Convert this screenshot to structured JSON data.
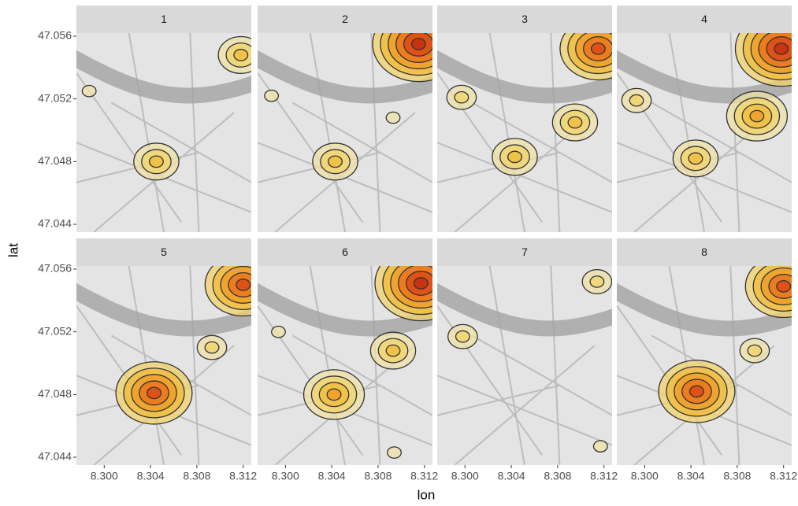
{
  "chart_data": {
    "type": "contour",
    "xlabel": "lon",
    "ylabel": "lat",
    "xlim": [
      8.2976,
      8.3127
    ],
    "ylim": [
      47.0435,
      47.0562
    ],
    "xticks": [
      {
        "value": 8.3,
        "label": "8.300"
      },
      {
        "value": 8.304,
        "label": "8.304"
      },
      {
        "value": 8.308,
        "label": "8.308"
      },
      {
        "value": 8.312,
        "label": "8.312"
      }
    ],
    "yticks": [
      47.044,
      47.048,
      47.052,
      47.056
    ],
    "facets": [
      {
        "label": "1",
        "x": [
          8.3045,
          8.3118,
          8.2987
        ],
        "y": [
          47.048,
          47.0548,
          47.0525
        ],
        "levels": [
          3,
          3,
          1
        ]
      },
      {
        "label": "2",
        "x": [
          8.3043,
          8.3115,
          8.2988,
          8.3093
        ],
        "y": [
          47.048,
          47.0555,
          47.0522,
          47.0508
        ],
        "levels": [
          3,
          6,
          1,
          1
        ]
      },
      {
        "label": "3",
        "x": [
          8.3043,
          8.3115,
          8.2997,
          8.3095
        ],
        "y": [
          47.0483,
          47.0552,
          47.0521,
          47.0505
        ],
        "levels": [
          3,
          5,
          2,
          3
        ]
      },
      {
        "label": "4",
        "x": [
          8.3044,
          8.3097,
          8.3118,
          8.2993
        ],
        "y": [
          47.0482,
          47.0509,
          47.0552,
          47.0519
        ],
        "levels": [
          3,
          4,
          6,
          2
        ]
      },
      {
        "label": "5",
        "x": [
          8.3043,
          8.312,
          8.3093
        ],
        "y": [
          47.0481,
          47.055,
          47.051
        ],
        "levels": [
          5,
          5,
          2
        ]
      },
      {
        "label": "6",
        "x": [
          8.3042,
          8.3093,
          8.3117,
          8.2994,
          8.3094
        ],
        "y": [
          47.048,
          47.0508,
          47.0551,
          47.052,
          47.0443
        ],
        "levels": [
          4,
          3,
          6,
          1,
          1
        ]
      },
      {
        "label": "7",
        "x": [
          8.2998,
          8.3114,
          8.3117
        ],
        "y": [
          47.0517,
          47.0552,
          47.0447
        ],
        "levels": [
          2,
          2,
          1
        ]
      },
      {
        "label": "8",
        "x": [
          8.3045,
          8.312,
          8.3095
        ],
        "y": [
          47.0482,
          47.0549,
          47.0508
        ],
        "levels": [
          5,
          5,
          2
        ]
      }
    ]
  }
}
